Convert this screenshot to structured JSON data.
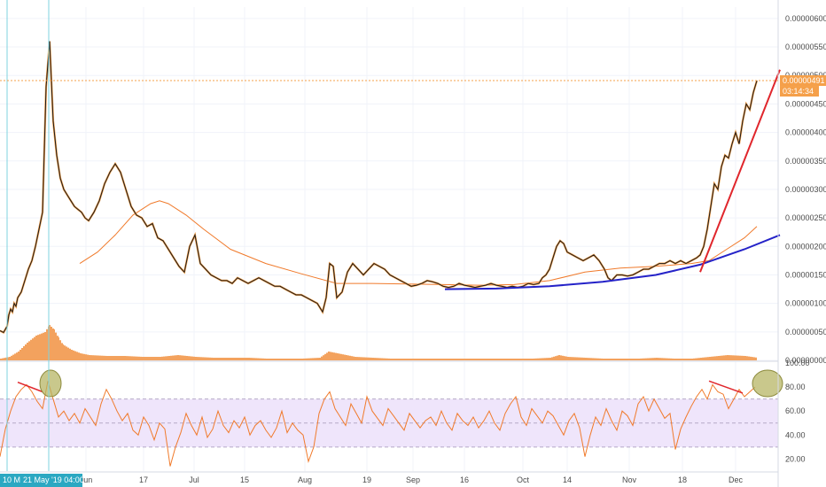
{
  "chart_data": {
    "type": "line",
    "price_axis": {
      "ticks": [
        "0.00000600",
        "0.00000550",
        "0.00000500",
        "0.00000450",
        "0.00000400",
        "0.00000350",
        "0.00000300",
        "0.00000250",
        "0.00000200",
        "0.00000150",
        "0.00000100",
        "0.00000050",
        "0.00000000"
      ],
      "range": [
        0.0,
        6.2e-06
      ]
    },
    "rsi_axis": {
      "ticks": [
        "100.00",
        "80.00",
        "60.00",
        "40.00",
        "20.00"
      ],
      "range": [
        10,
        100
      ],
      "band": [
        30,
        70
      ]
    },
    "date_ticks": [
      "Jun",
      "17",
      "Jul",
      "15",
      "Aug",
      "19",
      "Sep",
      "16",
      "Oct",
      "14",
      "Nov",
      "18",
      "Dec"
    ],
    "cursor_date_label": "10 M",
    "cursor_date_full": "21 May '19   04:00",
    "last_price_label": "0.00000491",
    "countdown_label": "03:14:34",
    "price_series": {
      "x": [
        0,
        4,
        8,
        10,
        12,
        14,
        16,
        18,
        20,
        24,
        28,
        32,
        36,
        40,
        44,
        48,
        52,
        56,
        60,
        64,
        68,
        72,
        76,
        80,
        84,
        88,
        92,
        96,
        100,
        106,
        112,
        118,
        124,
        130,
        136,
        142,
        148,
        154,
        160,
        166,
        172,
        178,
        184,
        190,
        196,
        202,
        208,
        214,
        220,
        226,
        232,
        238,
        244,
        250,
        256,
        262,
        268,
        274,
        280,
        286,
        292,
        298,
        304,
        310,
        316,
        322,
        328,
        334,
        340,
        346,
        352,
        358,
        364,
        368,
        372,
        376,
        380,
        386,
        392,
        398,
        404,
        410,
        416,
        422,
        428,
        434,
        440,
        446,
        452,
        458,
        464,
        470,
        476,
        482,
        488,
        494,
        500,
        506,
        512,
        518,
        524,
        530,
        536,
        542,
        548,
        554,
        560,
        566,
        572,
        578,
        584,
        590,
        596,
        602,
        608,
        612,
        616,
        620,
        624,
        628,
        632,
        636,
        640,
        646,
        652,
        658,
        664,
        670,
        676,
        682,
        686,
        690,
        696,
        702,
        708,
        714,
        720,
        726,
        732,
        738,
        744,
        750,
        756,
        762,
        768,
        774,
        780,
        786,
        790,
        794,
        798,
        802,
        806,
        810,
        814,
        818,
        822,
        826,
        830,
        834,
        838,
        842,
        846,
        850,
        854
      ],
      "y": [
        5.2e-07,
        4.9e-07,
        6e-07,
        8e-07,
        9e-07,
        8.5e-07,
        1e-06,
        9.5e-07,
        1.1e-06,
        1.2e-06,
        1.4e-06,
        1.6e-06,
        1.75e-06,
        2e-06,
        2.3e-06,
        2.6e-06,
        4.8e-06,
        5.6e-06,
        4.2e-06,
        3.6e-06,
        3.2e-06,
        3e-06,
        2.9e-06,
        2.8e-06,
        2.7e-06,
        2.65e-06,
        2.6e-06,
        2.5e-06,
        2.45e-06,
        2.6e-06,
        2.8e-06,
        3.1e-06,
        3.3e-06,
        3.45e-06,
        3.3e-06,
        3e-06,
        2.7e-06,
        2.55e-06,
        2.5e-06,
        2.35e-06,
        2.4e-06,
        2.15e-06,
        2.1e-06,
        1.95e-06,
        1.8e-06,
        1.65e-06,
        1.55e-06,
        2e-06,
        2.2e-06,
        1.7e-06,
        1.6e-06,
        1.5e-06,
        1.45e-06,
        1.4e-06,
        1.4e-06,
        1.35e-06,
        1.45e-06,
        1.4e-06,
        1.35e-06,
        1.4e-06,
        1.45e-06,
        1.4e-06,
        1.35e-06,
        1.3e-06,
        1.3e-06,
        1.25e-06,
        1.2e-06,
        1.15e-06,
        1.15e-06,
        1.1e-06,
        1.05e-06,
        1e-06,
        8.5e-07,
        1.1e-06,
        1.7e-06,
        1.65e-06,
        1.1e-06,
        1.2e-06,
        1.55e-06,
        1.7e-06,
        1.6e-06,
        1.5e-06,
        1.6e-06,
        1.7e-06,
        1.65e-06,
        1.6e-06,
        1.5e-06,
        1.45e-06,
        1.4e-06,
        1.35e-06,
        1.3e-06,
        1.32e-06,
        1.35e-06,
        1.4e-06,
        1.38e-06,
        1.35e-06,
        1.3e-06,
        1.28e-06,
        1.3e-06,
        1.35e-06,
        1.32e-06,
        1.3e-06,
        1.28e-06,
        1.3e-06,
        1.32e-06,
        1.35e-06,
        1.32e-06,
        1.3e-06,
        1.28e-06,
        1.3e-06,
        1.28e-06,
        1.3e-06,
        1.35e-06,
        1.33e-06,
        1.35e-06,
        1.45e-06,
        1.5e-06,
        1.6e-06,
        1.8e-06,
        2e-06,
        2.1e-06,
        2.05e-06,
        1.9e-06,
        1.85e-06,
        1.8e-06,
        1.75e-06,
        1.8e-06,
        1.85e-06,
        1.75e-06,
        1.6e-06,
        1.45e-06,
        1.4e-06,
        1.5e-06,
        1.5e-06,
        1.48e-06,
        1.5e-06,
        1.55e-06,
        1.6e-06,
        1.6e-06,
        1.65e-06,
        1.7e-06,
        1.7e-06,
        1.75e-06,
        1.7e-06,
        1.75e-06,
        1.7e-06,
        1.75e-06,
        1.8e-06,
        1.85e-06,
        2e-06,
        2.3e-06,
        2.7e-06,
        3.1e-06,
        3e-06,
        3.4e-06,
        3.6e-06,
        3.55e-06,
        3.8e-06,
        4e-06,
        3.8e-06,
        4.2e-06,
        4.5e-06,
        4.4e-06,
        4.7e-06,
        4.91e-06
      ]
    },
    "ma_series": {
      "x": [
        90,
        110,
        130,
        150,
        170,
        180,
        190,
        210,
        230,
        260,
        300,
        340,
        380,
        420,
        460,
        500,
        540,
        580,
        620,
        660,
        700,
        740,
        780,
        800,
        820,
        840,
        854
      ],
      "y": [
        1.7e-06,
        1.9e-06,
        2.2e-06,
        2.55e-06,
        2.75e-06,
        2.8e-06,
        2.75e-06,
        2.55e-06,
        2.3e-06,
        1.95e-06,
        1.7e-06,
        1.52e-06,
        1.35e-06,
        1.35e-06,
        1.34e-06,
        1.33e-06,
        1.32e-06,
        1.33e-06,
        1.4e-06,
        1.55e-06,
        1.62e-06,
        1.65e-06,
        1.7e-06,
        1.75e-06,
        1.95e-06,
        2.15e-06,
        2.35e-06
      ]
    },
    "trendlines": [
      {
        "color": "#2422c8",
        "x": [
          502,
          560,
          620,
          680,
          740,
          790,
          840,
          880
        ],
        "y": [
          1.25e-06,
          1.26e-06,
          1.3e-06,
          1.38e-06,
          1.5e-06,
          1.68e-06,
          1.95e-06,
          2.2e-06
        ]
      },
      {
        "color": "#e0262c",
        "x": [
          790,
          880
        ],
        "y": [
          1.55e-06,
          5.1e-06
        ]
      }
    ],
    "volume": {
      "x": [
        0,
        10,
        20,
        30,
        40,
        50,
        55,
        60,
        65,
        70,
        80,
        90,
        100,
        120,
        140,
        160,
        180,
        200,
        220,
        240,
        260,
        280,
        300,
        320,
        340,
        360,
        370,
        380,
        400,
        420,
        440,
        460,
        480,
        500,
        520,
        540,
        560,
        580,
        600,
        620,
        630,
        640,
        660,
        680,
        700,
        720,
        740,
        760,
        780,
        800,
        820,
        840,
        854
      ],
      "v": [
        2,
        4,
        10,
        20,
        28,
        32,
        40,
        35,
        26,
        18,
        12,
        8,
        6,
        5,
        5,
        4,
        4,
        6,
        4,
        3,
        3,
        3,
        2,
        2,
        2,
        3,
        10,
        8,
        4,
        3,
        2,
        2,
        2,
        2,
        2,
        2,
        2,
        2,
        2,
        3,
        6,
        4,
        3,
        2,
        2,
        2,
        3,
        2,
        2,
        4,
        6,
        5,
        3
      ]
    },
    "rsi_series": {
      "x": [
        0,
        6,
        12,
        18,
        24,
        30,
        36,
        42,
        48,
        54,
        60,
        66,
        72,
        78,
        84,
        90,
        96,
        102,
        108,
        114,
        120,
        126,
        132,
        138,
        144,
        150,
        156,
        162,
        168,
        174,
        180,
        186,
        192,
        198,
        204,
        210,
        216,
        222,
        228,
        234,
        240,
        246,
        252,
        258,
        264,
        270,
        276,
        282,
        288,
        294,
        300,
        306,
        312,
        318,
        324,
        330,
        336,
        342,
        348,
        354,
        360,
        366,
        372,
        378,
        384,
        390,
        396,
        402,
        408,
        414,
        420,
        426,
        432,
        438,
        444,
        450,
        456,
        462,
        468,
        474,
        480,
        486,
        492,
        498,
        504,
        510,
        516,
        522,
        528,
        534,
        540,
        546,
        552,
        558,
        564,
        570,
        576,
        582,
        588,
        594,
        600,
        606,
        612,
        618,
        624,
        630,
        636,
        642,
        648,
        654,
        660,
        666,
        672,
        678,
        684,
        690,
        696,
        702,
        708,
        714,
        720,
        726,
        732,
        738,
        744,
        750,
        756,
        762,
        768,
        774,
        780,
        786,
        792,
        798,
        804,
        810,
        816,
        822,
        828,
        834,
        840,
        846,
        852
      ],
      "y": [
        22,
        45,
        60,
        72,
        78,
        82,
        76,
        68,
        62,
        85,
        70,
        55,
        60,
        52,
        58,
        50,
        62,
        55,
        48,
        66,
        78,
        70,
        60,
        52,
        58,
        44,
        40,
        55,
        48,
        36,
        50,
        45,
        14,
        30,
        42,
        58,
        48,
        40,
        55,
        38,
        45,
        60,
        48,
        42,
        52,
        46,
        55,
        40,
        48,
        52,
        44,
        38,
        46,
        60,
        42,
        50,
        44,
        40,
        18,
        30,
        58,
        70,
        76,
        62,
        55,
        48,
        66,
        58,
        50,
        72,
        60,
        54,
        48,
        62,
        56,
        50,
        44,
        58,
        52,
        46,
        52,
        55,
        48,
        60,
        50,
        44,
        58,
        52,
        48,
        55,
        46,
        52,
        60,
        50,
        44,
        58,
        66,
        72,
        55,
        48,
        62,
        56,
        50,
        60,
        56,
        48,
        40,
        52,
        58,
        46,
        22,
        40,
        55,
        48,
        62,
        52,
        44,
        60,
        56,
        48,
        66,
        72,
        60,
        70,
        62,
        54,
        58,
        28,
        45,
        55,
        64,
        72,
        78,
        70,
        82,
        76,
        74,
        62,
        70,
        78,
        72,
        76,
        80
      ]
    },
    "rsi_divergence_lines": [
      {
        "color": "#e0262c",
        "x": [
          20,
          48
        ],
        "y": [
          84,
          76
        ]
      },
      {
        "color": "#e0262c",
        "x": [
          800,
          838
        ],
        "y": [
          85,
          75
        ]
      }
    ],
    "annotation_circles": [
      {
        "name": "circle-left",
        "cx": 57,
        "cy": 83
      },
      {
        "name": "circle-right",
        "cx": 866,
        "cy": 83
      }
    ]
  }
}
